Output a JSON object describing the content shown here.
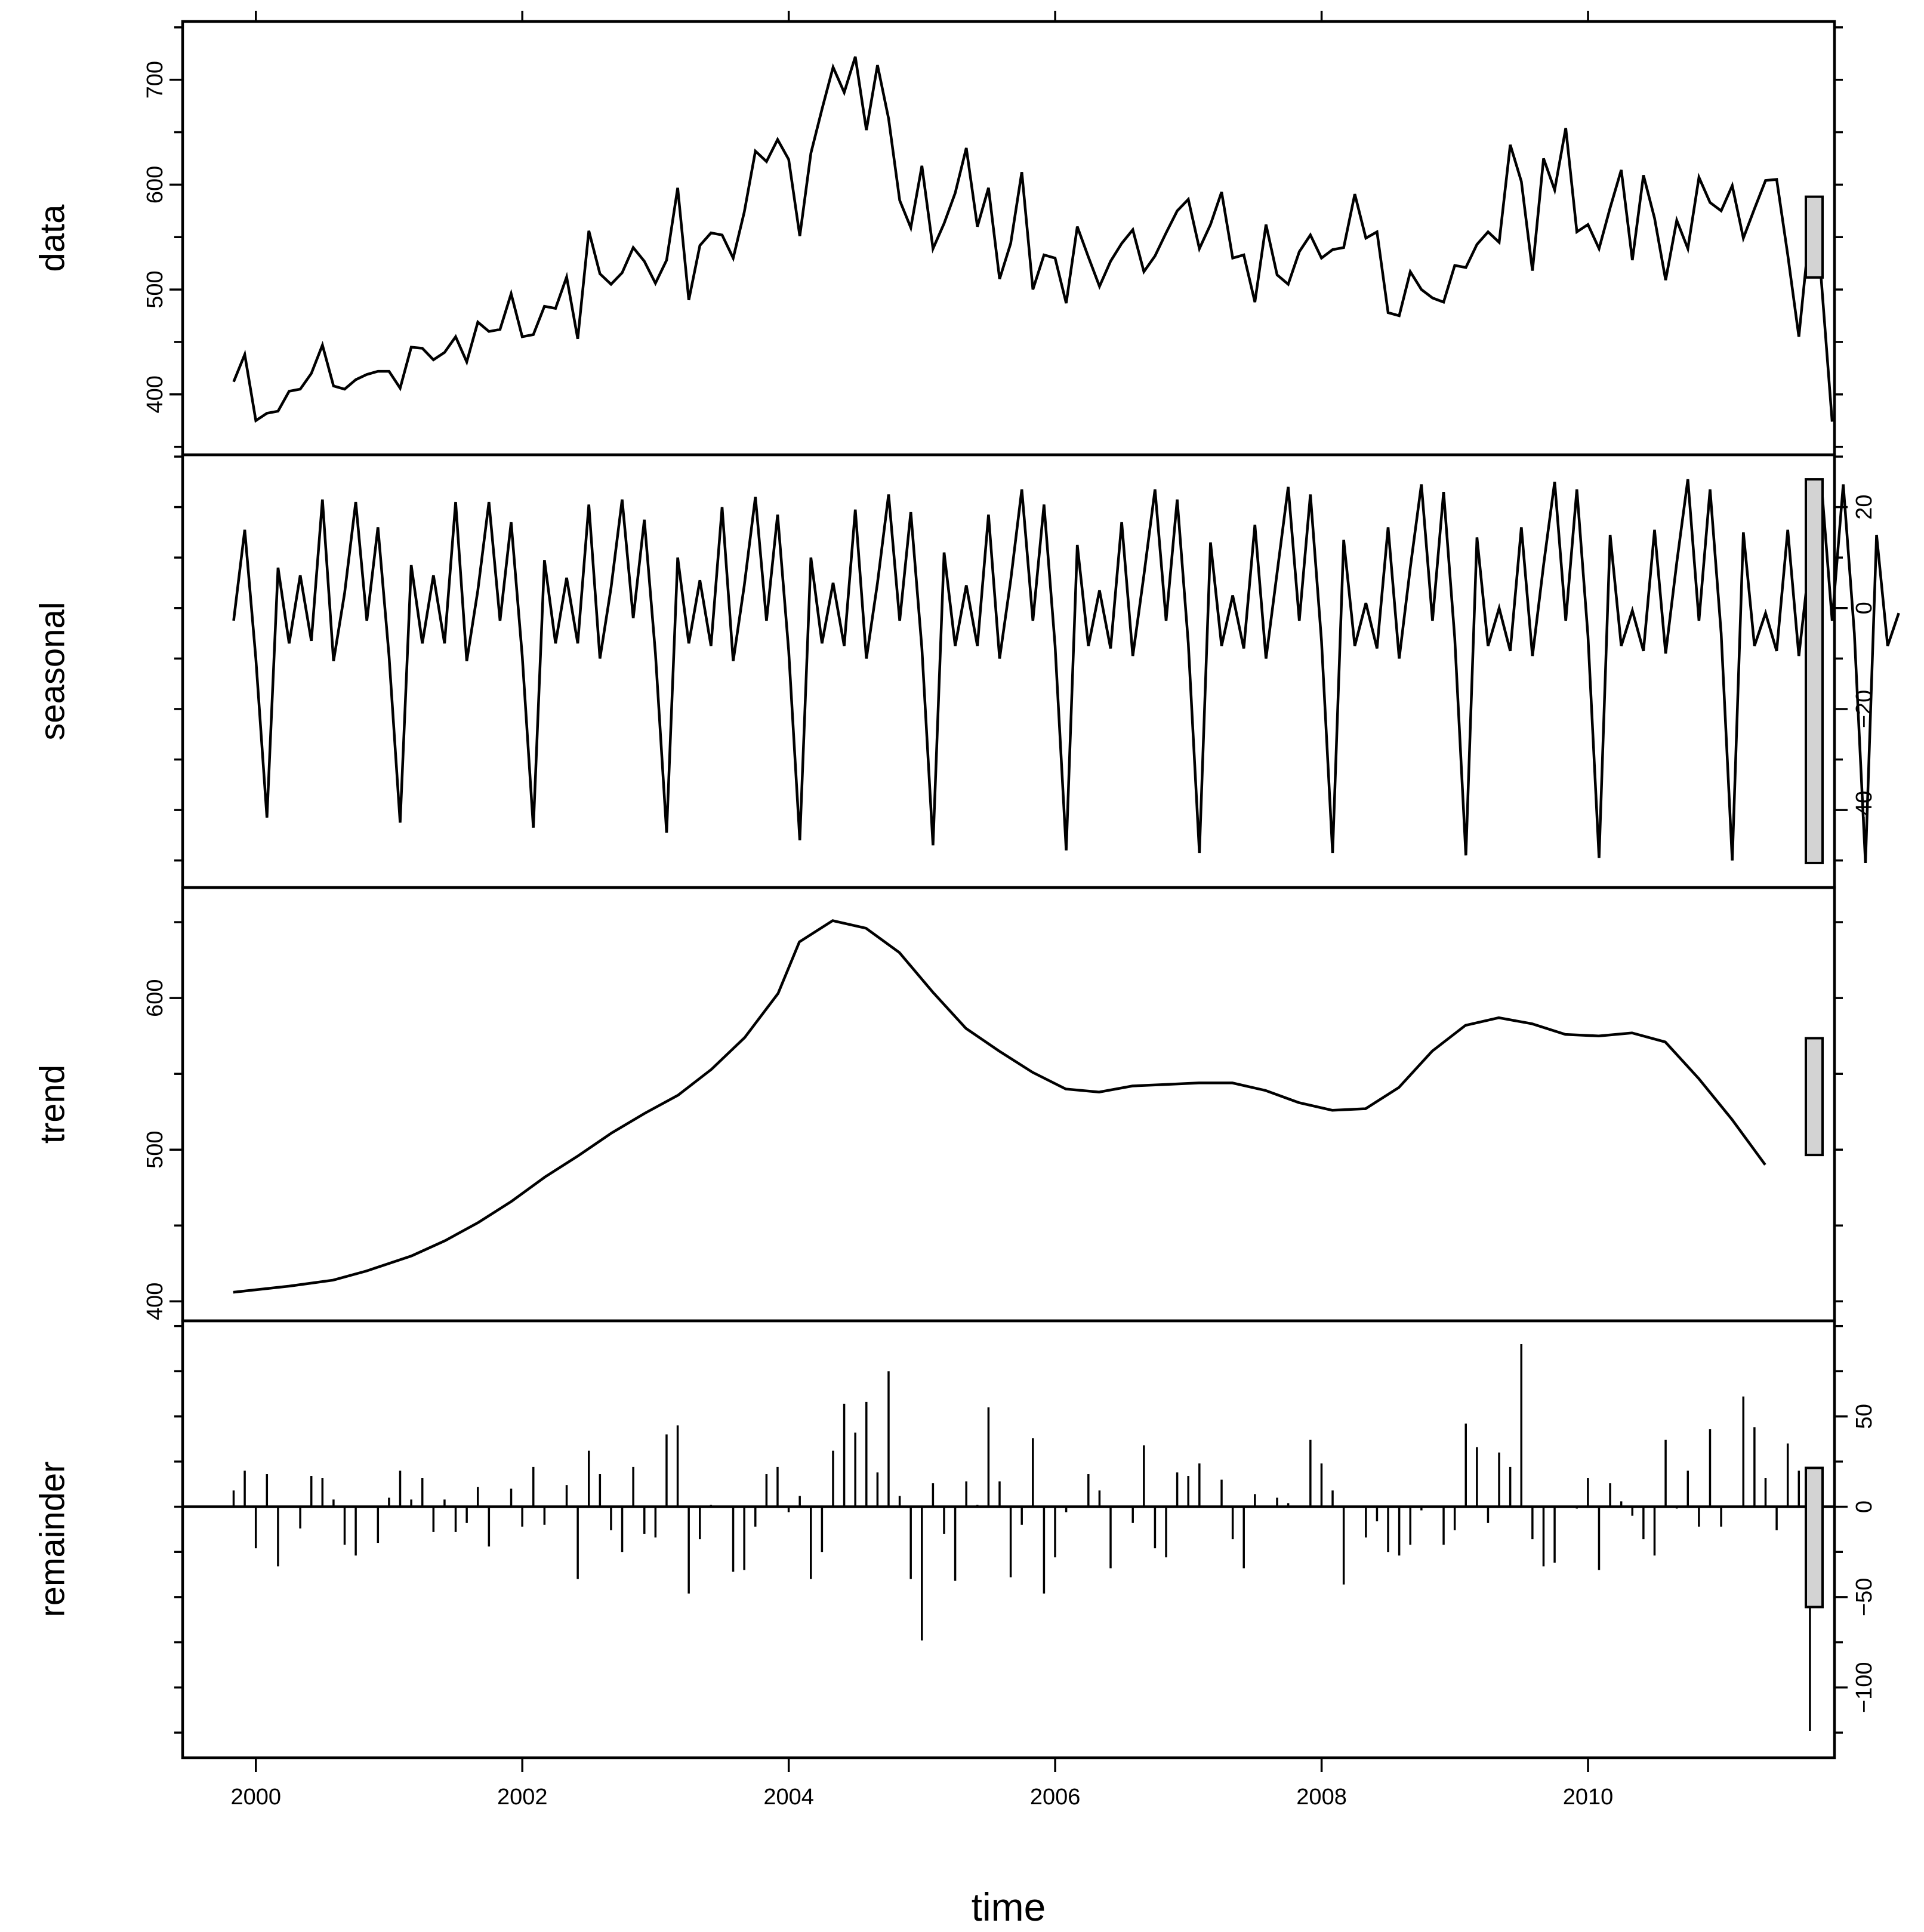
{
  "chart_data": {
    "type": "line",
    "layout": "stl-decomposition",
    "xlabel": "time",
    "x_range": [
      1999.45,
      2011.85
    ],
    "x_ticks": [
      2000,
      2002,
      2004,
      2006,
      2008,
      2010
    ],
    "x_tick_labels": [
      "2000",
      "2002",
      "2004",
      "2006",
      "2008",
      "2010"
    ],
    "time_start": 1999.833,
    "time_step": 0.08333,
    "line_color": "#000000",
    "range_bar_color": "#d3d3d3",
    "panels": [
      {
        "name": "data",
        "label": "data",
        "type": "line",
        "ylim": [
          361,
          737
        ],
        "y_ticks": [
          400,
          500,
          600,
          700
        ],
        "y_tick_labels": [
          "400",
          "500",
          "600",
          "700"
        ],
        "y_axis_side": "left",
        "values": [
          412,
          438,
          375,
          382,
          384,
          403,
          405,
          420,
          447,
          408,
          405,
          414,
          419,
          422,
          422,
          406,
          445,
          444,
          433,
          440,
          455,
          431,
          469,
          460,
          462,
          496,
          455,
          457,
          484,
          482,
          512,
          453,
          556,
          515,
          505,
          516,
          540,
          527,
          506,
          528,
          597,
          490,
          542,
          554,
          552,
          530,
          574,
          632,
          622,
          643,
          624,
          551,
          630,
          672,
          712,
          688,
          722,
          652,
          714,
          663,
          585,
          559,
          618,
          539,
          563,
          592,
          635,
          560,
          597,
          510,
          544,
          612,
          500,
          533,
          530,
          487,
          560,
          531,
          503,
          527,
          544,
          557,
          517,
          532,
          554,
          575,
          586,
          539,
          562,
          593,
          530,
          533,
          488,
          562,
          514,
          505,
          536,
          552,
          530,
          538,
          540,
          591,
          549,
          555,
          478,
          475,
          517,
          500,
          492,
          488,
          523,
          521,
          543,
          555,
          545,
          638,
          603,
          518,
          625,
          595,
          654,
          555,
          562,
          539,
          578,
          614,
          528,
          609,
          568,
          509,
          566,
          539,
          607,
          583,
          575,
          599,
          549,
          577,
          604,
          605,
          533,
          455,
          560,
          512,
          374
        ]
      },
      {
        "name": "seasonal",
        "label": "seasonal",
        "type": "line",
        "ylim": [
          -51.5,
          26.5
        ],
        "y_ticks": [
          -40,
          -20,
          0,
          20
        ],
        "y_tick_labels": [
          "−40",
          "−20",
          "0",
          "20"
        ],
        "y_axis_side": "right",
        "values": [
          -2.5,
          15.5,
          -10,
          -41.5,
          8,
          -7,
          6.5,
          -6.5,
          21.5,
          -10.5,
          3,
          21,
          -2.5,
          16,
          -9.5,
          -42.5,
          8.5,
          -7,
          6.5,
          -7,
          21,
          -10.5,
          3.5,
          21,
          -2.5,
          17,
          -9.5,
          -43.5,
          9.5,
          -7,
          6,
          -7,
          20.5,
          -10,
          4,
          21.5,
          -2,
          17.5,
          -9,
          -44.5,
          10,
          -7,
          5.5,
          -7.5,
          20,
          -10.5,
          4.5,
          22,
          -2.5,
          18.5,
          -8.5,
          -46,
          10,
          -7,
          5,
          -7.5,
          19.5,
          -10,
          5,
          22.5,
          -2.5,
          19,
          -8,
          -47,
          11,
          -7.5,
          4.5,
          -7.5,
          18.5,
          -10,
          5.5,
          23.5,
          -2.5,
          20.5,
          -7.5,
          -48,
          12.5,
          -7.5,
          3.5,
          -8,
          17,
          -9.5,
          6.5,
          23.5,
          -2.5,
          21.5,
          -7,
          -48.5,
          13,
          -7.5,
          2.5,
          -8,
          16.5,
          -10,
          7,
          24,
          -2.5,
          22.5,
          -6.5,
          -48.5,
          13.5,
          -7.5,
          1,
          -8,
          16,
          -10,
          8,
          24.5,
          -2.5,
          23,
          -6,
          -49,
          14,
          -7.5,
          0,
          -8.5,
          16,
          -9.5,
          8.5,
          25,
          -2.5,
          23.5,
          -5.5,
          -49.5,
          14.5,
          -7.5,
          -0.5,
          -8.5,
          15.5,
          -9,
          9,
          25.5,
          -2.5,
          23.5,
          -5,
          -50,
          15,
          -7.5,
          -1,
          -8.5,
          15.5,
          -9.5,
          10,
          25.5,
          -2.5,
          24.5,
          -5,
          -50.5,
          14.5,
          -7.5,
          -1
        ]
      },
      {
        "name": "trend",
        "label": "trend",
        "type": "line",
        "ylim": [
          400,
          660
        ],
        "y_ticks": [
          400,
          500,
          600
        ],
        "y_tick_labels": [
          "400",
          "500",
          "600"
        ],
        "y_axis_side": "left",
        "points": [
          [
            1999.83,
            406
          ],
          [
            2000.25,
            410
          ],
          [
            2000.58,
            414
          ],
          [
            2000.83,
            420
          ],
          [
            2001.17,
            430
          ],
          [
            2001.42,
            440
          ],
          [
            2001.67,
            452
          ],
          [
            2001.92,
            466
          ],
          [
            2002.17,
            482
          ],
          [
            2002.42,
            496
          ],
          [
            2002.67,
            511
          ],
          [
            2002.92,
            524
          ],
          [
            2003.17,
            536
          ],
          [
            2003.42,
            553
          ],
          [
            2003.67,
            574
          ],
          [
            2003.92,
            603
          ],
          [
            2004.08,
            637
          ],
          [
            2004.33,
            651
          ],
          [
            2004.58,
            646
          ],
          [
            2004.83,
            630
          ],
          [
            2005.08,
            604
          ],
          [
            2005.33,
            580
          ],
          [
            2005.58,
            565
          ],
          [
            2005.83,
            551
          ],
          [
            2006.08,
            540
          ],
          [
            2006.33,
            538
          ],
          [
            2006.58,
            542
          ],
          [
            2006.83,
            543
          ],
          [
            2007.08,
            544
          ],
          [
            2007.33,
            544
          ],
          [
            2007.58,
            539
          ],
          [
            2007.83,
            531
          ],
          [
            2008.08,
            526
          ],
          [
            2008.33,
            527
          ],
          [
            2008.58,
            541
          ],
          [
            2008.83,
            565
          ],
          [
            2009.08,
            582
          ],
          [
            2009.33,
            587
          ],
          [
            2009.58,
            583
          ],
          [
            2009.83,
            576
          ],
          [
            2010.08,
            575
          ],
          [
            2010.33,
            577
          ],
          [
            2010.58,
            571
          ],
          [
            2010.83,
            547
          ],
          [
            2011.08,
            520
          ],
          [
            2011.33,
            490
          ]
        ]
      },
      {
        "name": "remainder",
        "label": "remainder",
        "type": "bars",
        "ylim": [
          -128,
          92
        ],
        "y_ticks": [
          -100,
          -50,
          0,
          50
        ],
        "y_tick_labels": [
          "−100",
          "−50",
          "0",
          "50"
        ],
        "y_axis_side": "right",
        "values": [
          9,
          20,
          -23,
          18,
          -33,
          0,
          -12,
          17,
          16,
          4,
          -21,
          -27,
          0,
          -20,
          5,
          20,
          4,
          16,
          -14,
          4,
          -14,
          -9,
          11,
          -22,
          0,
          10,
          -11,
          22,
          -10,
          0,
          12,
          -40,
          31,
          18,
          -13,
          -25,
          22,
          -15,
          -17,
          40,
          45,
          -48,
          -18,
          1,
          0,
          -36,
          -35,
          -11,
          18,
          22,
          -3,
          6,
          -40,
          -25,
          31,
          57,
          41,
          58,
          19,
          75,
          6,
          -40,
          -74,
          13,
          -15,
          -41,
          14,
          1,
          55,
          14,
          -39,
          -10,
          38,
          -48,
          -28,
          -3,
          0,
          18,
          9,
          -34,
          0,
          -9,
          34,
          -23,
          -28,
          19,
          17,
          24,
          0,
          15,
          -18,
          -34,
          7,
          0,
          5,
          2,
          0,
          37,
          24,
          9,
          -43,
          0,
          -17,
          -8,
          -25,
          -27,
          -21,
          -2,
          0,
          -21,
          -13,
          46,
          33,
          -9,
          30,
          22,
          90,
          -18,
          -33,
          -31,
          0,
          -1,
          16,
          -35,
          13,
          3,
          -5,
          -18,
          -27,
          37,
          -1,
          20,
          -11,
          43,
          -11,
          0,
          61,
          44,
          16,
          -13,
          35,
          20,
          -124
        ]
      }
    ]
  }
}
